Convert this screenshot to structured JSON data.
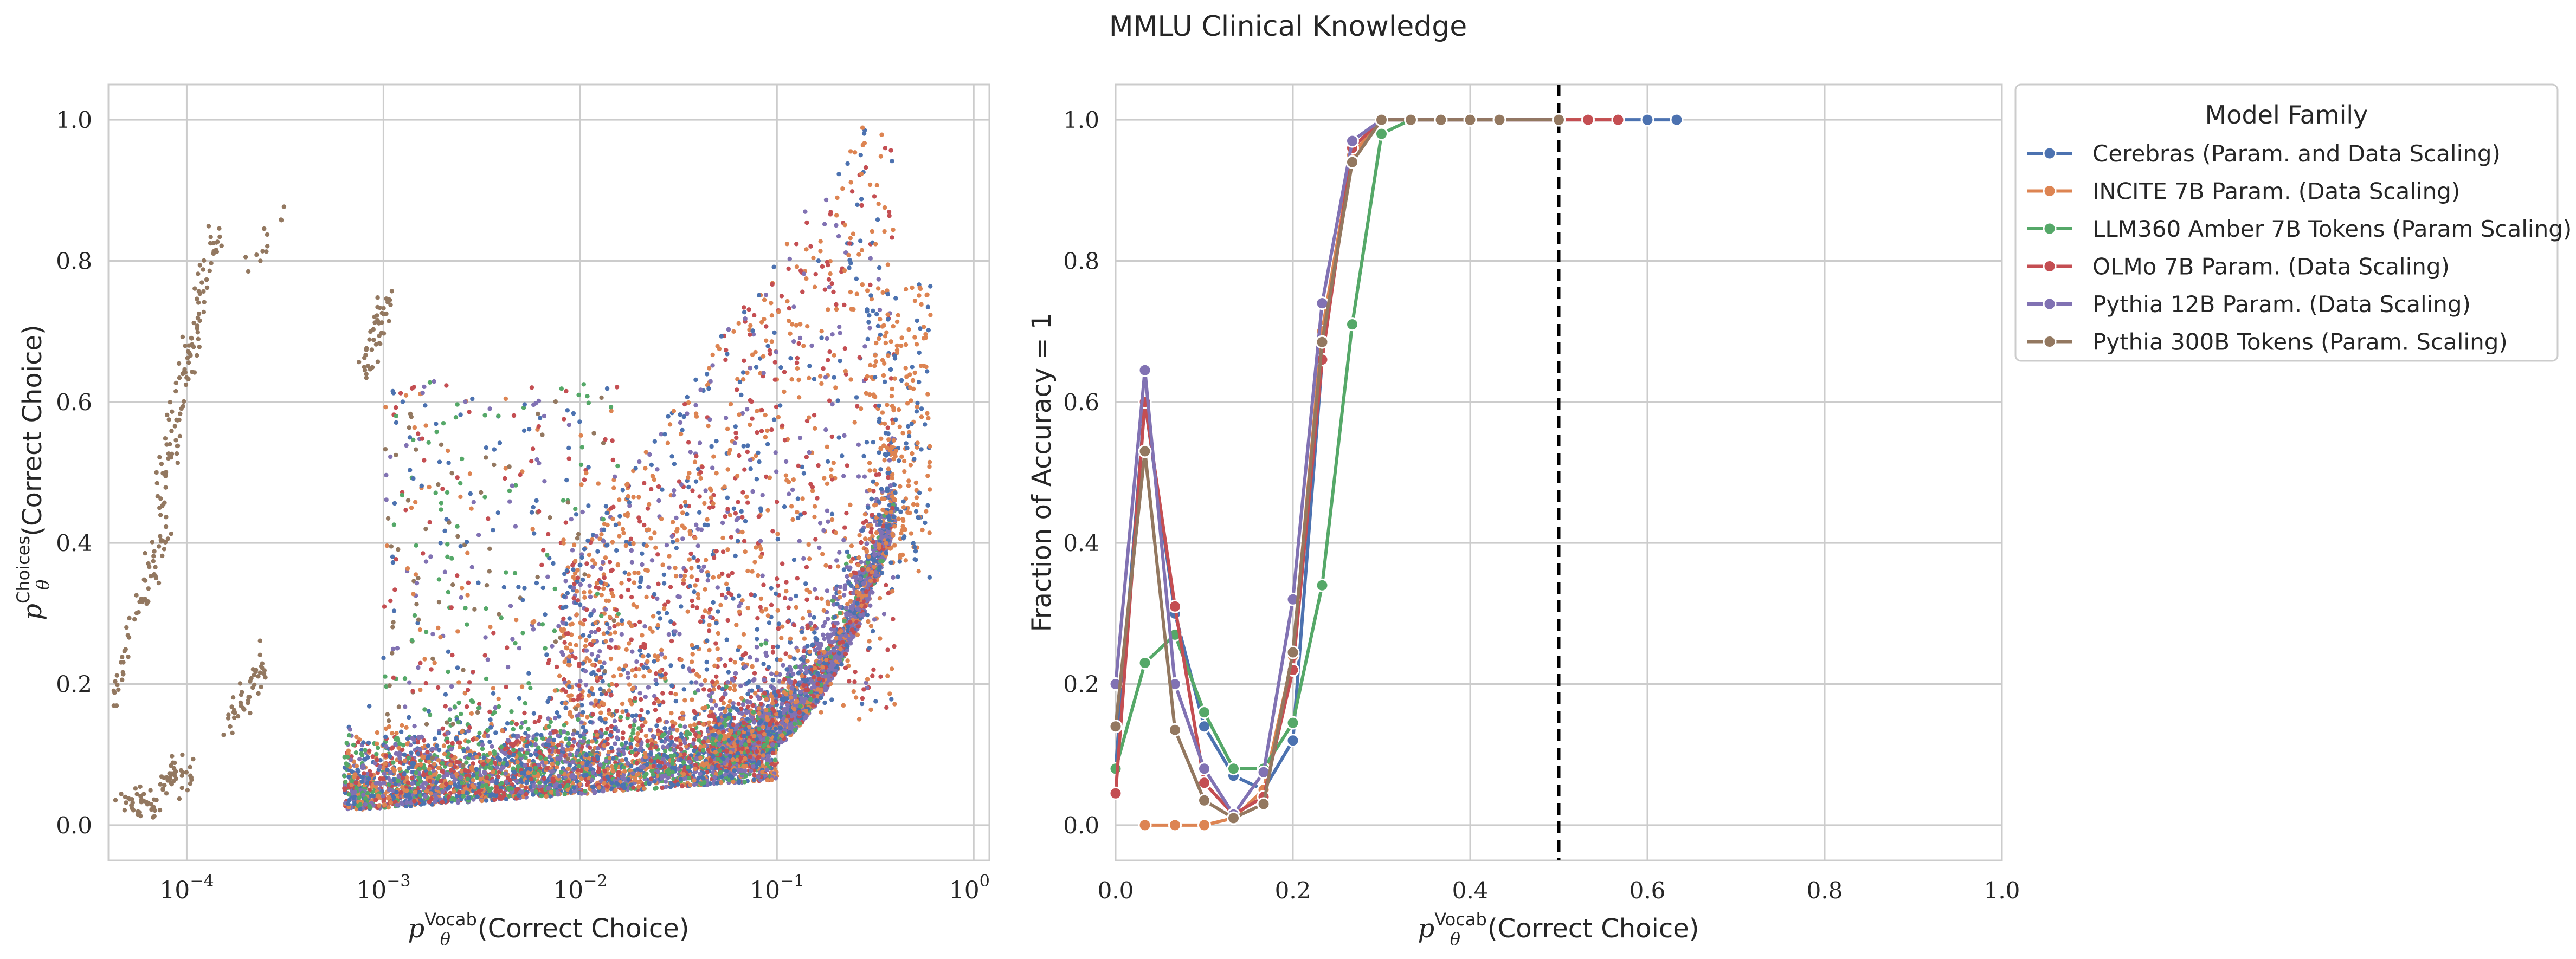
{
  "title": "MMLU Clinical Knowledge",
  "colors": {
    "cerebras": "#4c72b0",
    "incite": "#dd8452",
    "amber": "#55a868",
    "olmo": "#c44e52",
    "pythia12b": "#8172b3",
    "pythia300b": "#937860"
  },
  "chart_data": [
    {
      "type": "scatter",
      "xscale": "log",
      "xlabel_base": "p",
      "xlabel_sub": "θ",
      "xlabel_sup": "Vocab",
      "xlabel_text": "(Correct Choice)",
      "ylabel_base": "p",
      "ylabel_sub": "θ",
      "ylabel_sup": "Choices",
      "ylabel_text": "(Correct Choice)",
      "xlim": [
        4e-05,
        1.2
      ],
      "ylim": [
        -0.05,
        1.05
      ],
      "xticks": [
        {
          "value": 0.0001,
          "base": "10",
          "exp": "−4"
        },
        {
          "value": 0.001,
          "base": "10",
          "exp": "−3"
        },
        {
          "value": 0.01,
          "base": "10",
          "exp": "−2"
        },
        {
          "value": 0.1,
          "base": "10",
          "exp": "−1"
        },
        {
          "value": 1,
          "base": "10",
          "exp": "0"
        }
      ],
      "yticks": [
        {
          "value": 0.0,
          "label": "0.0"
        },
        {
          "value": 0.2,
          "label": "0.2"
        },
        {
          "value": 0.4,
          "label": "0.4"
        },
        {
          "value": 0.6,
          "label": "0.6"
        },
        {
          "value": 0.8,
          "label": "0.8"
        },
        {
          "value": 1.0,
          "label": "1.0"
        }
      ],
      "grid": true,
      "series_color_keys": [
        "cerebras",
        "incite",
        "amber",
        "olmo",
        "pythia12b",
        "pythia300b"
      ]
    },
    {
      "type": "line",
      "xlabel_base": "p",
      "xlabel_sub": "θ",
      "xlabel_sup": "Vocab",
      "xlabel_text": "(Correct Choice)",
      "ylabel": "Fraction of Accuracy = 1",
      "xlim": [
        0.0,
        1.0
      ],
      "ylim": [
        -0.05,
        1.05
      ],
      "xticks": [
        {
          "value": 0.0,
          "label": "0.0"
        },
        {
          "value": 0.2,
          "label": "0.2"
        },
        {
          "value": 0.4,
          "label": "0.4"
        },
        {
          "value": 0.6,
          "label": "0.6"
        },
        {
          "value": 0.8,
          "label": "0.8"
        },
        {
          "value": 1.0,
          "label": "1.0"
        }
      ],
      "yticks": [
        {
          "value": 0.0,
          "label": "0.0"
        },
        {
          "value": 0.2,
          "label": "0.2"
        },
        {
          "value": 0.4,
          "label": "0.4"
        },
        {
          "value": 0.6,
          "label": "0.6"
        },
        {
          "value": 0.8,
          "label": "0.8"
        },
        {
          "value": 1.0,
          "label": "1.0"
        }
      ],
      "vline": {
        "x": 0.5,
        "style": "dashed",
        "color": "#000000"
      },
      "grid": true,
      "legend": {
        "title": "Model Family",
        "placement": "outside-right-top"
      },
      "series": [
        {
          "name": "Cerebras (Param. and Data Scaling)",
          "color_key": "cerebras",
          "points": [
            [
              0.0,
              0.08
            ],
            [
              0.033,
              0.6
            ],
            [
              0.067,
              0.3
            ],
            [
              0.1,
              0.14
            ],
            [
              0.133,
              0.07
            ],
            [
              0.167,
              0.05
            ],
            [
              0.2,
              0.12
            ],
            [
              0.233,
              0.66
            ],
            [
              0.267,
              0.97
            ],
            [
              0.3,
              1.0
            ],
            [
              0.333,
              1.0
            ],
            [
              0.367,
              1.0
            ],
            [
              0.4,
              1.0
            ],
            [
              0.433,
              1.0
            ],
            [
              0.5,
              1.0
            ],
            [
              0.533,
              1.0
            ],
            [
              0.567,
              1.0
            ],
            [
              0.6,
              1.0
            ],
            [
              0.633,
              1.0
            ]
          ]
        },
        {
          "name": "INCITE 7B Param. (Data Scaling)",
          "color_key": "incite",
          "points": [
            [
              0.033,
              0.0
            ],
            [
              0.067,
              0.0
            ],
            [
              0.1,
              0.0
            ],
            [
              0.133,
              0.01
            ],
            [
              0.167,
              0.05
            ],
            [
              0.2,
              0.24
            ],
            [
              0.233,
              0.7
            ],
            [
              0.267,
              0.95
            ],
            [
              0.3,
              1.0
            ],
            [
              0.333,
              1.0
            ],
            [
              0.367,
              1.0
            ],
            [
              0.4,
              1.0
            ],
            [
              0.433,
              1.0
            ],
            [
              0.5,
              1.0
            ],
            [
              0.533,
              1.0
            ],
            [
              0.567,
              1.0
            ]
          ]
        },
        {
          "name": "LLM360 Amber 7B Tokens (Param Scaling)",
          "color_key": "amber",
          "points": [
            [
              0.0,
              0.08
            ],
            [
              0.033,
              0.23
            ],
            [
              0.067,
              0.27
            ],
            [
              0.1,
              0.16
            ],
            [
              0.133,
              0.08
            ],
            [
              0.167,
              0.08
            ],
            [
              0.2,
              0.145
            ],
            [
              0.233,
              0.34
            ],
            [
              0.267,
              0.71
            ],
            [
              0.3,
              0.98
            ],
            [
              0.333,
              1.0
            ],
            [
              0.367,
              1.0
            ],
            [
              0.4,
              1.0
            ],
            [
              0.433,
              1.0
            ]
          ]
        },
        {
          "name": "OLMo 7B Param. (Data Scaling)",
          "color_key": "olmo",
          "points": [
            [
              0.0,
              0.045
            ],
            [
              0.033,
              0.6
            ],
            [
              0.067,
              0.31
            ],
            [
              0.1,
              0.06
            ],
            [
              0.133,
              0.015
            ],
            [
              0.167,
              0.04
            ],
            [
              0.2,
              0.22
            ],
            [
              0.233,
              0.66
            ],
            [
              0.267,
              0.96
            ],
            [
              0.3,
              1.0
            ],
            [
              0.333,
              1.0
            ],
            [
              0.367,
              1.0
            ],
            [
              0.4,
              1.0
            ],
            [
              0.433,
              1.0
            ],
            [
              0.5,
              1.0
            ],
            [
              0.533,
              1.0
            ],
            [
              0.567,
              1.0
            ]
          ]
        },
        {
          "name": "Pythia 12B Param. (Data Scaling)",
          "color_key": "pythia12b",
          "points": [
            [
              0.0,
              0.2
            ],
            [
              0.033,
              0.645
            ],
            [
              0.067,
              0.2
            ],
            [
              0.1,
              0.08
            ],
            [
              0.133,
              0.015
            ],
            [
              0.167,
              0.075
            ],
            [
              0.2,
              0.32
            ],
            [
              0.233,
              0.74
            ],
            [
              0.267,
              0.97
            ],
            [
              0.3,
              1.0
            ],
            [
              0.333,
              1.0
            ],
            [
              0.367,
              1.0
            ],
            [
              0.4,
              1.0
            ],
            [
              0.433,
              1.0
            ],
            [
              0.5,
              1.0
            ]
          ]
        },
        {
          "name": "Pythia 300B Tokens (Param. Scaling)",
          "color_key": "pythia300b",
          "points": [
            [
              0.0,
              0.14
            ],
            [
              0.033,
              0.53
            ],
            [
              0.067,
              0.135
            ],
            [
              0.1,
              0.035
            ],
            [
              0.133,
              0.01
            ],
            [
              0.167,
              0.03
            ],
            [
              0.2,
              0.245
            ],
            [
              0.233,
              0.685
            ],
            [
              0.267,
              0.94
            ],
            [
              0.3,
              1.0
            ],
            [
              0.333,
              1.0
            ],
            [
              0.367,
              1.0
            ],
            [
              0.4,
              1.0
            ],
            [
              0.433,
              1.0
            ],
            [
              0.5,
              1.0
            ]
          ]
        }
      ]
    }
  ]
}
